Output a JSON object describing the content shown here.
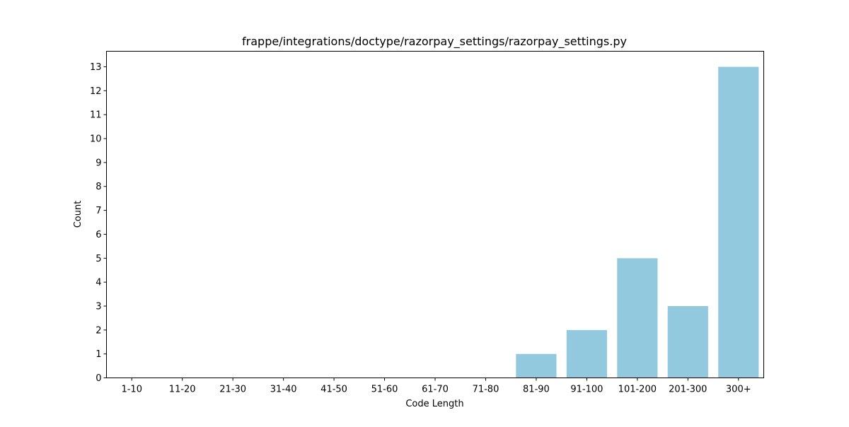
{
  "colors": {
    "bar": "#92c9df",
    "axis": "#000000",
    "background": "#ffffff"
  },
  "chart_data": {
    "type": "bar",
    "title": "frappe/integrations/doctype/razorpay_settings/razorpay_settings.py",
    "xlabel": "Code Length",
    "ylabel": "Count",
    "categories": [
      "1-10",
      "11-20",
      "21-30",
      "31-40",
      "41-50",
      "51-60",
      "61-70",
      "71-80",
      "81-90",
      "91-100",
      "101-200",
      "201-300",
      "300+"
    ],
    "values": [
      0,
      0,
      0,
      0,
      0,
      0,
      0,
      0,
      1,
      2,
      5,
      3,
      13
    ],
    "yticks": [
      0,
      1,
      2,
      3,
      4,
      5,
      6,
      7,
      8,
      9,
      10,
      11,
      12,
      13
    ],
    "ylim": [
      0,
      13.65
    ],
    "grid": false,
    "legend": "none"
  }
}
